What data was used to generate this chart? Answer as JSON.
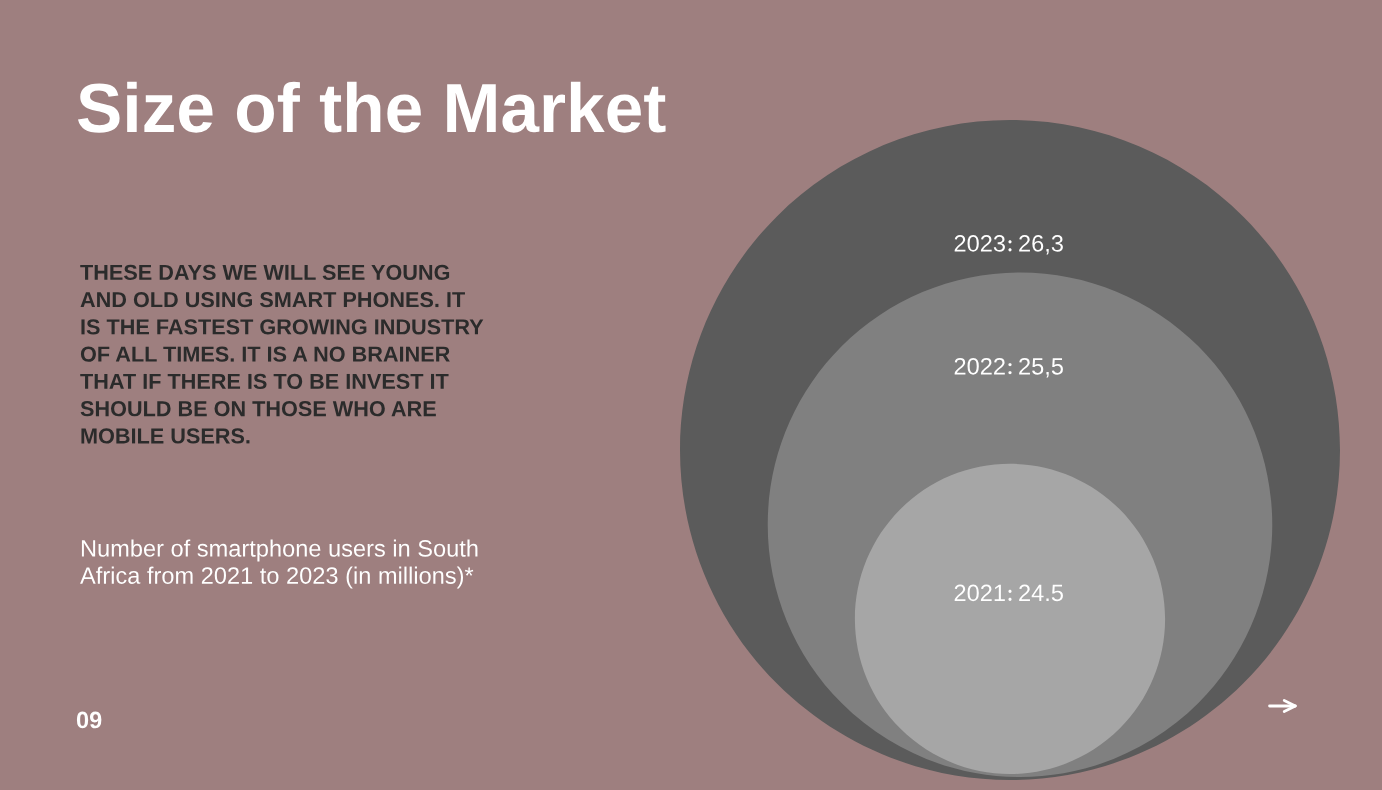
{
  "chart_data": {
    "type": "other",
    "title": "Size of the Market",
    "categories": [
      "2021",
      "2022",
      "2023"
    ],
    "values": [
      24.5,
      25.5,
      26.3
    ],
    "value_labels": [
      "24.5",
      "25,5",
      "26,3"
    ],
    "colors": [
      "#a6a6a6",
      "#808080",
      "#5b5b5b"
    ],
    "annotations": [
      "THESE DAYS WE WILL SEE YOUNG\nAND OLD USING SMART PHONES. IT\nIS THE FASTEST GROWING INDUSTRY\nOF ALL TIMES. IT IS A NO BRAINER\nTHAT IF THERE IS TO BE INVEST IT\nSHOULD BE ON THOSE WHO ARE\nMOBILE USERS.",
      "Number of smartphone users in South\nAfrica from 2021 to 2023 (in millions)*",
      "09"
    ]
  }
}
